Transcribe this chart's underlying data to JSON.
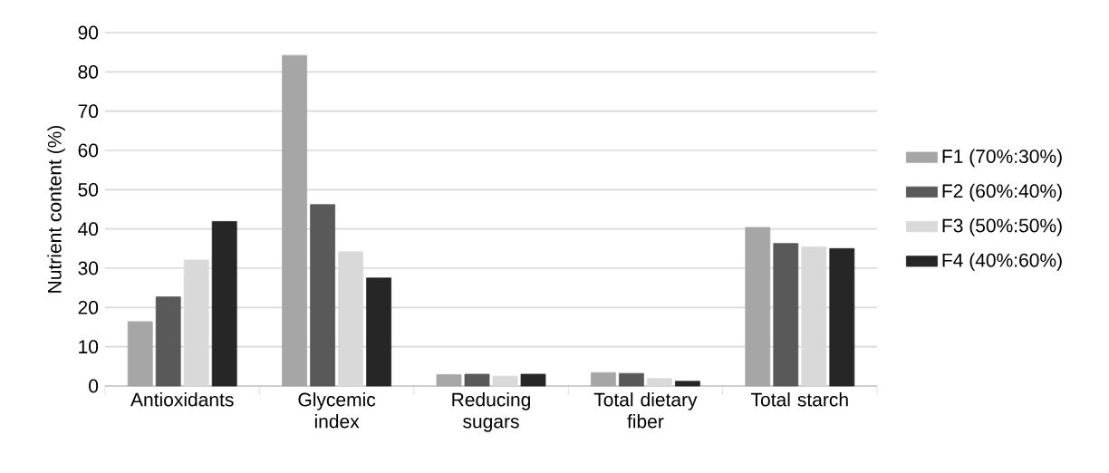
{
  "chart_data": {
    "type": "bar",
    "ylabel": "Nutrient content (%)",
    "categories": [
      "Antioxidants",
      "Glycemic index",
      "Reducing sugars",
      "Total dietary fiber",
      "Total starch"
    ],
    "series": [
      {
        "name": "F1 (70%:30%)",
        "color": "#a6a6a6",
        "values": [
          16.4,
          84.2,
          2.9,
          3.4,
          40.4
        ]
      },
      {
        "name": "F2 (60%:40%)",
        "color": "#595959",
        "values": [
          22.7,
          46.2,
          3.0,
          3.2,
          36.3
        ]
      },
      {
        "name": "F3 (50%:50%)",
        "color": "#d9d9d9",
        "values": [
          32.1,
          34.2,
          2.5,
          1.9,
          35.4
        ]
      },
      {
        "name": "F4 (40%:60%)",
        "color": "#262626",
        "values": [
          41.9,
          27.5,
          3.0,
          1.2,
          35.0
        ]
      }
    ],
    "ylim": [
      0,
      90
    ],
    "yticks": [
      0,
      10,
      20,
      30,
      40,
      50,
      60,
      70,
      80,
      90
    ],
    "grid": "y",
    "legend": "right"
  }
}
